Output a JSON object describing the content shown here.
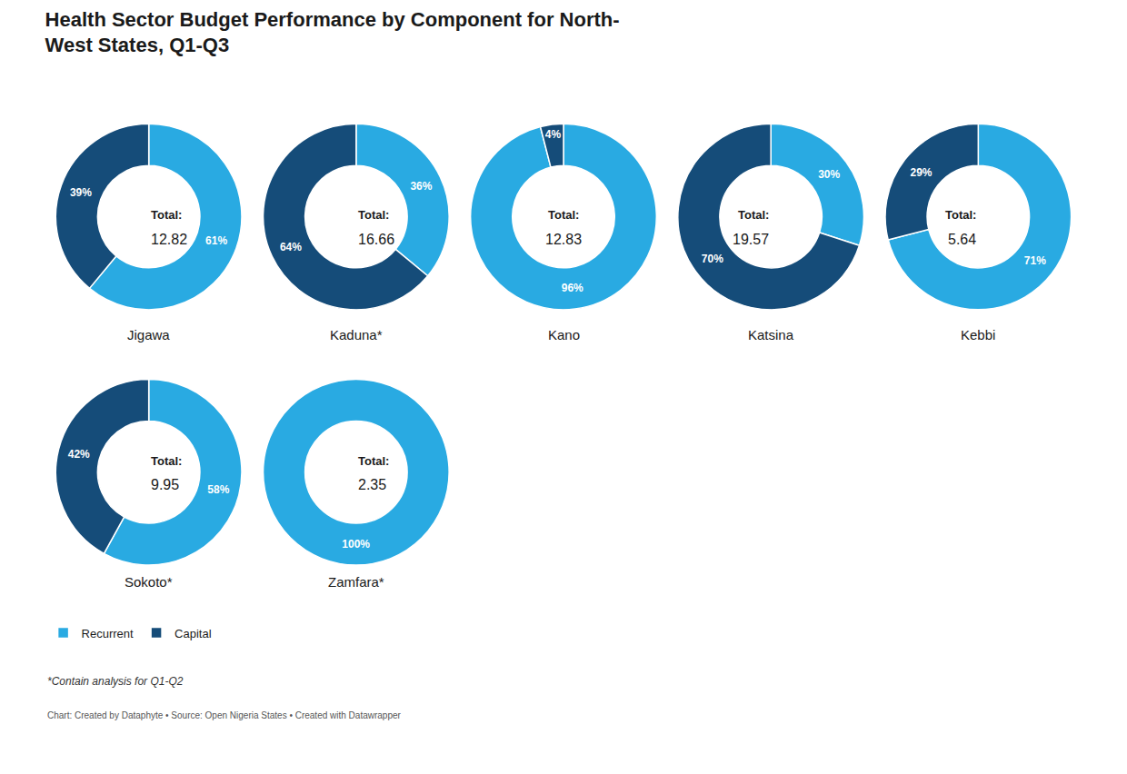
{
  "chart_data": {
    "type": "donut",
    "title": "Health Sector Budget Performance by Component for North-\nWest States, Q1-Q3",
    "legend": "bottom left",
    "data_labels": true,
    "pies": [
      {
        "title": "Jigawa",
        "annotations": [
          "Total:",
          "12.82"
        ],
        "categories": [
          "Recurrent",
          "Capital"
        ],
        "values": [
          61,
          39
        ],
        "value_labels": [
          "61%",
          "39%"
        ],
        "colors": [
          "#29aae2",
          "#154c79"
        ]
      },
      {
        "title": "Kaduna*",
        "annotations": [
          "Total:",
          "16.66"
        ],
        "categories": [
          "Recurrent",
          "Capital"
        ],
        "values": [
          36,
          64
        ],
        "value_labels": [
          "36%",
          "64%"
        ],
        "colors": [
          "#29aae2",
          "#154c79"
        ]
      },
      {
        "title": "Kano",
        "annotations": [
          "Total:",
          "12.83"
        ],
        "categories": [
          "Recurrent",
          "Capital"
        ],
        "values": [
          96,
          4
        ],
        "value_labels": [
          "96%",
          "4%"
        ],
        "colors": [
          "#29aae2",
          "#154c79"
        ]
      },
      {
        "title": "Katsina",
        "annotations": [
          "Total:",
          "19.57"
        ],
        "categories": [
          "Recurrent",
          "Capital"
        ],
        "values": [
          30,
          70
        ],
        "value_labels": [
          "30%",
          "70%"
        ],
        "colors": [
          "#29aae2",
          "#154c79"
        ]
      },
      {
        "title": "Kebbi",
        "annotations": [
          "Total:",
          "5.64"
        ],
        "categories": [
          "Recurrent",
          "Capital"
        ],
        "values": [
          71,
          29
        ],
        "value_labels": [
          "71%",
          "29%"
        ],
        "colors": [
          "#29aae2",
          "#154c79"
        ]
      },
      {
        "title": "Sokoto*",
        "annotations": [
          "Total:",
          "9.95"
        ],
        "categories": [
          "Recurrent",
          "Capital"
        ],
        "values": [
          58,
          42
        ],
        "value_labels": [
          "58%",
          "42%"
        ],
        "colors": [
          "#29aae2",
          "#154c79"
        ]
      },
      {
        "title": "Zamfara*",
        "annotations": [
          "Total:",
          "2.35"
        ],
        "categories": [
          "Recurrent"
        ],
        "values": [
          100
        ],
        "value_labels": [
          "100%"
        ],
        "colors": [
          "#29aae2"
        ]
      }
    ],
    "annotations": [
      "*Contain analysis for Q1-Q2",
      "Chart: Created by Dataphyte • Source: Open Nigeria States • Created with Datawrapper"
    ]
  }
}
